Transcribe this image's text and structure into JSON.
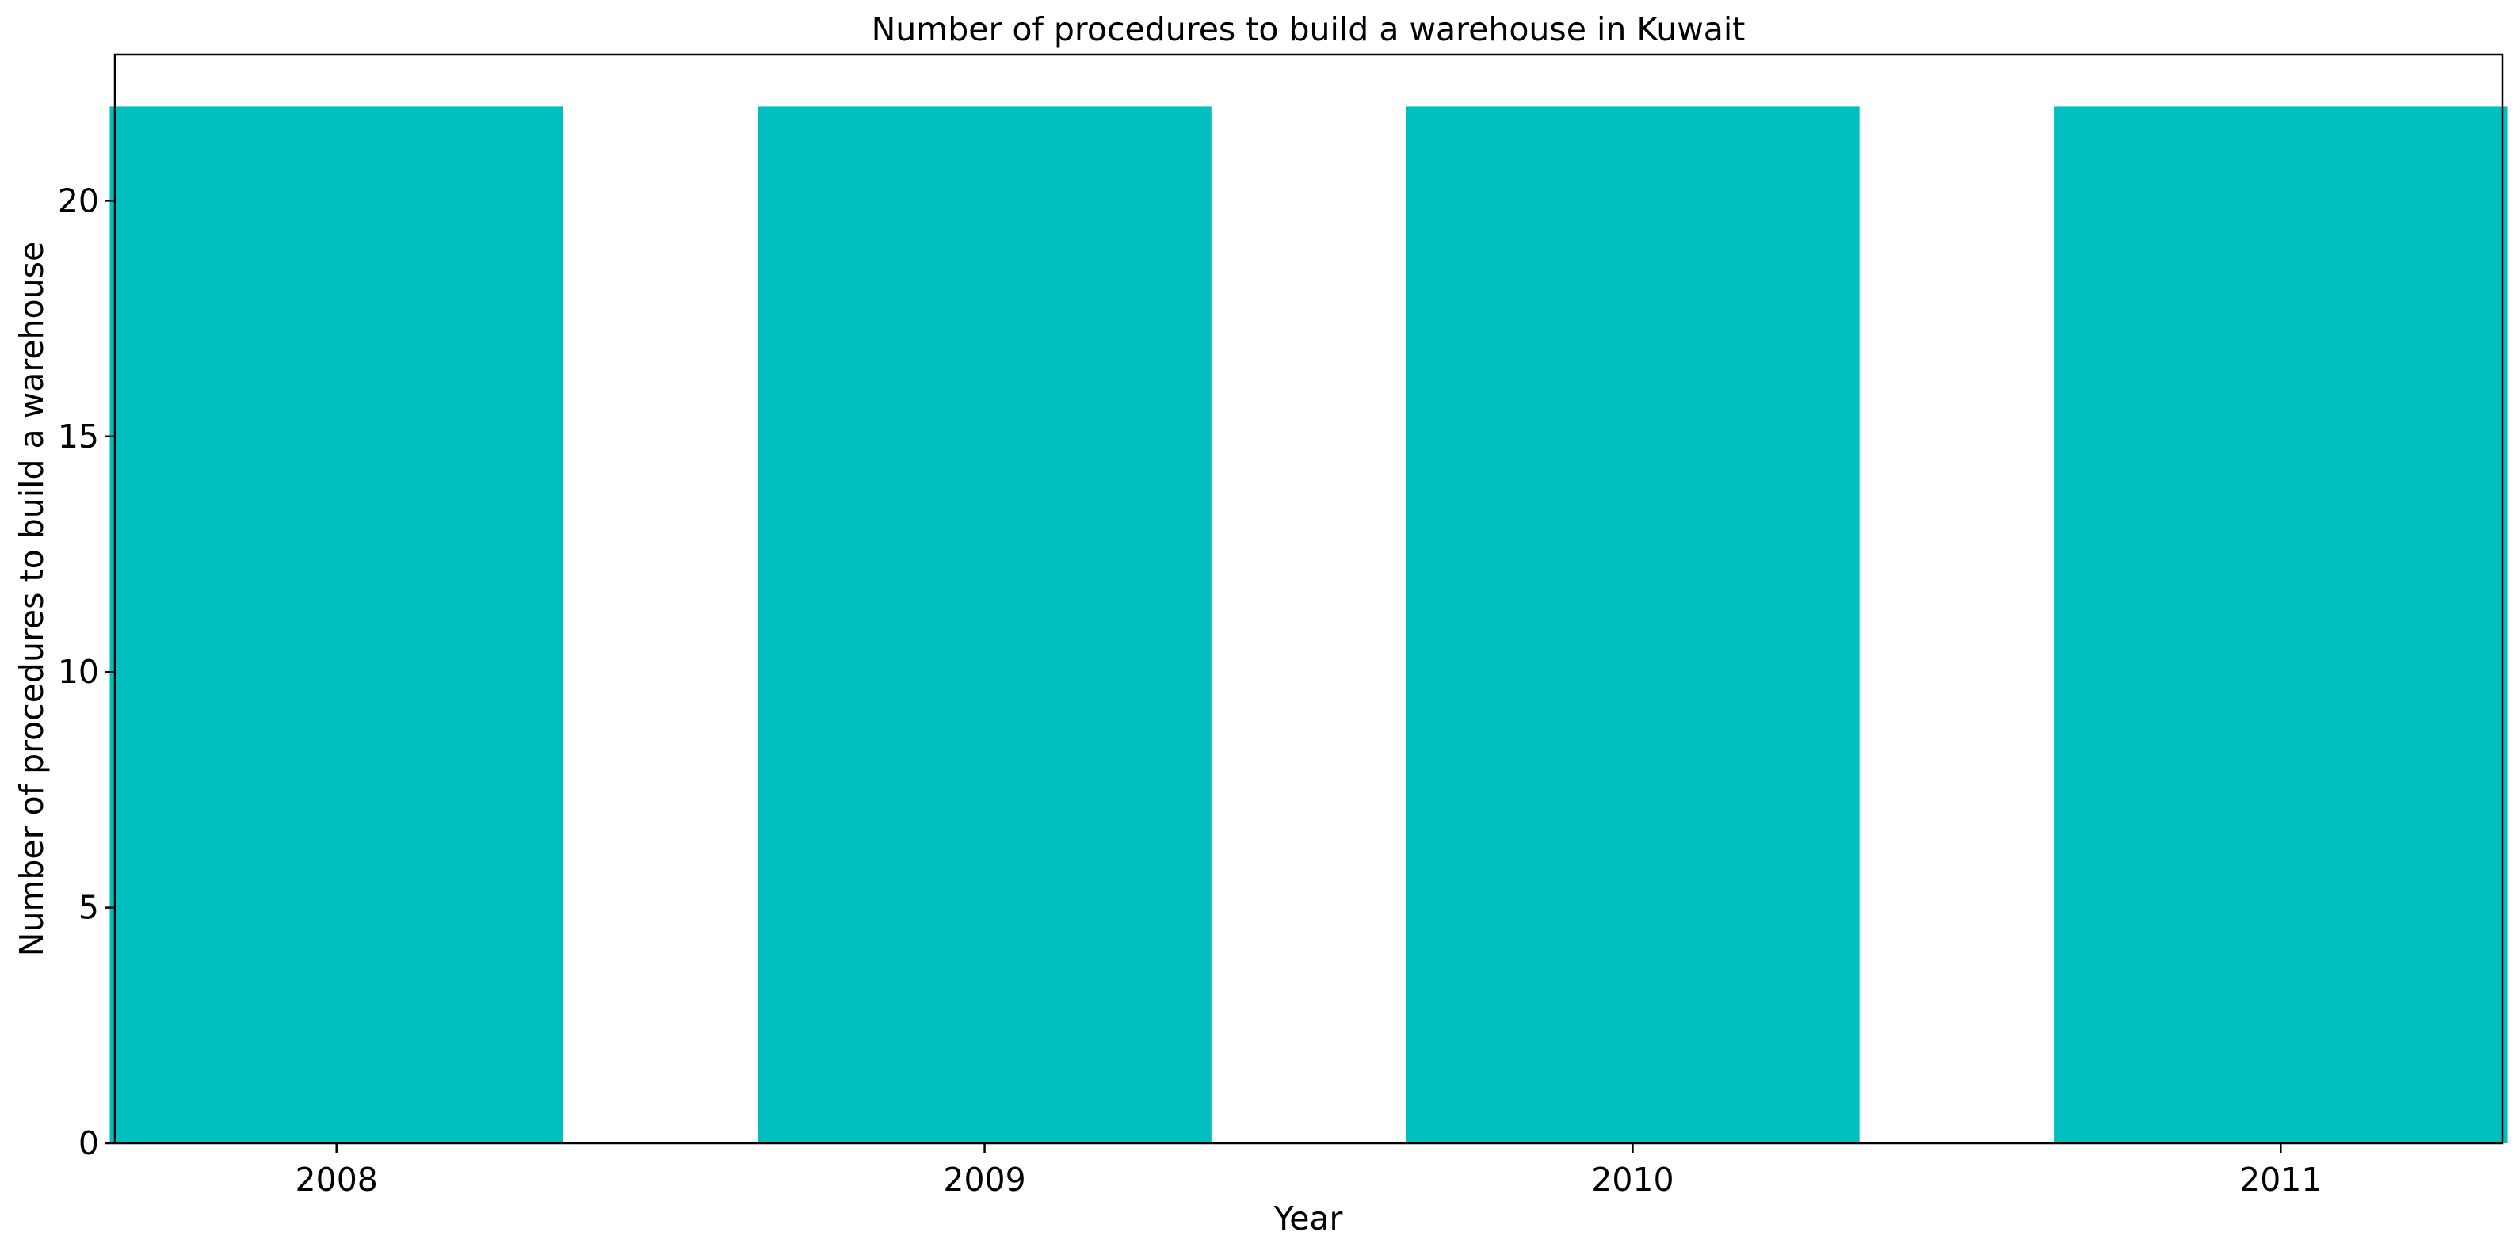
{
  "chart_data": {
    "type": "bar",
    "title": "Number of procedures to build a warehouse in Kuwait",
    "xlabel": "Year",
    "ylabel": "Number of procedures to build a warehouse",
    "categories": [
      "2008",
      "2009",
      "2010",
      "2011"
    ],
    "values": [
      22,
      22,
      22,
      22
    ],
    "ylim": [
      0,
      23.1
    ],
    "yticks": [
      0,
      5,
      10,
      15,
      20
    ],
    "grid": false,
    "legend": "none",
    "bar_color": "#00bfbf"
  }
}
